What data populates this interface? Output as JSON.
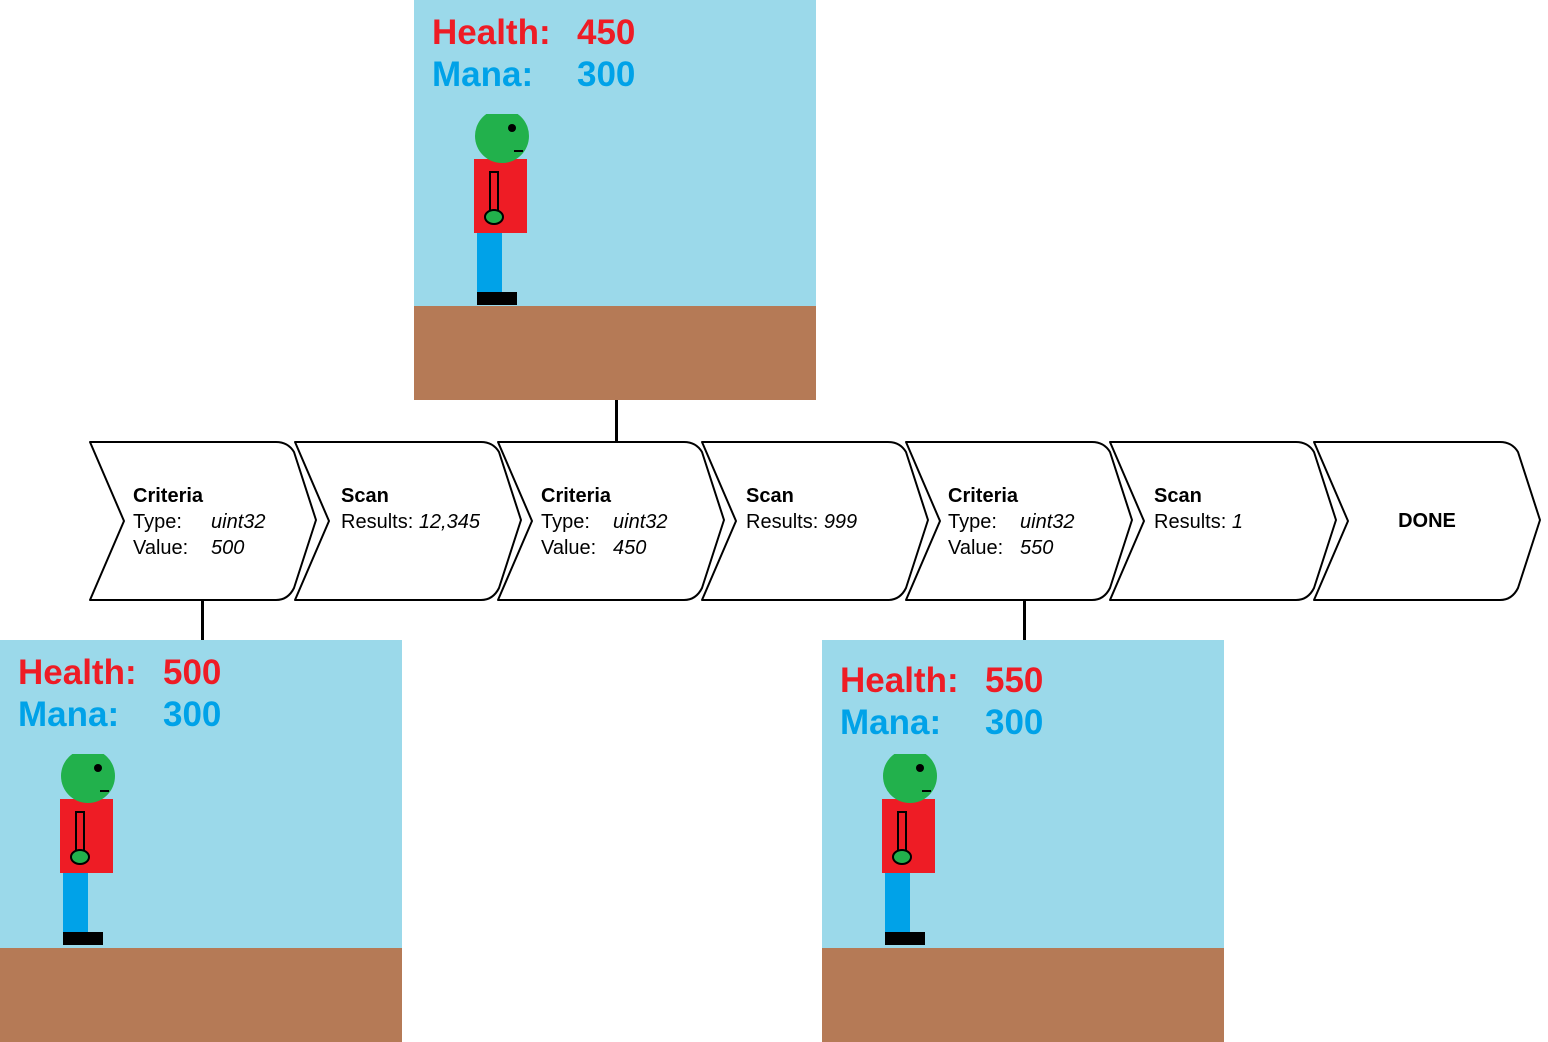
{
  "frames": [
    {
      "id": "top",
      "health_label": "Health:",
      "health_value": "450",
      "mana_label": "Mana:",
      "mana_value": "300"
    },
    {
      "id": "bottom-left",
      "health_label": "Health:",
      "health_value": "500",
      "mana_label": "Mana:",
      "mana_value": "300"
    },
    {
      "id": "bottom-right",
      "health_label": "Health:",
      "health_value": "550",
      "mana_label": "Mana:",
      "mana_value": "300"
    }
  ],
  "steps": [
    {
      "title": "Criteria",
      "type_label": "Type:",
      "type_value": "uint32",
      "value_label": "Value:",
      "value_value": "500"
    },
    {
      "title": "Scan",
      "results_label": "Results:",
      "results_value": "12,345"
    },
    {
      "title": "Criteria",
      "type_label": "Type:",
      "type_value": "uint32",
      "value_label": "Value:",
      "value_value": "450"
    },
    {
      "title": "Scan",
      "results_label": "Results:",
      "results_value": "999"
    },
    {
      "title": "Criteria",
      "type_label": "Type:",
      "type_value": "uint32",
      "value_label": "Value:",
      "value_value": "550"
    },
    {
      "title": "Scan",
      "results_label": "Results:",
      "results_value": "1"
    },
    {
      "title": "DONE"
    }
  ],
  "colors": {
    "sky": "#9bd9ea",
    "ground": "#b57a56",
    "health": "#ee1c25",
    "mana": "#00a2e8",
    "skin": "#22b14c",
    "shirt": "#ee1c25",
    "pants": "#00a2e8",
    "shoes": "#000000"
  }
}
